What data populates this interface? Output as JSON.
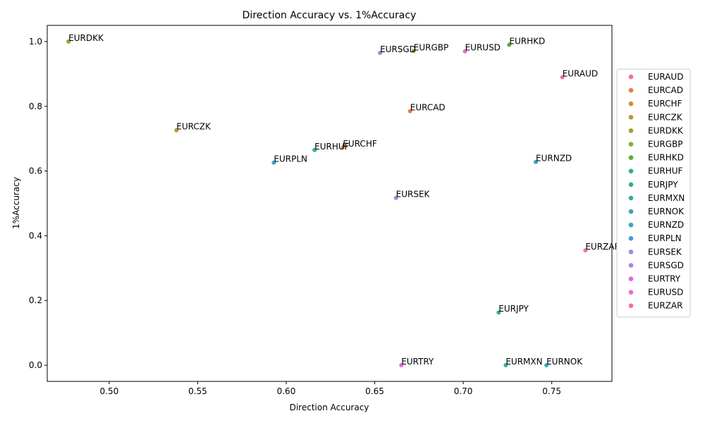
{
  "chart_data": {
    "type": "scatter",
    "title": "Direction Accuracy vs. 1%Accuracy",
    "xlabel": "Direction Accuracy",
    "ylabel": "1%Accuracy",
    "xlim": [
      0.465,
      0.784
    ],
    "ylim": [
      -0.05,
      1.05
    ],
    "xticks": [
      0.5,
      0.55,
      0.6,
      0.65,
      0.7,
      0.75
    ],
    "xtick_labels": [
      "0.50",
      "0.55",
      "0.60",
      "0.65",
      "0.70",
      "0.75"
    ],
    "yticks": [
      0.0,
      0.2,
      0.4,
      0.6,
      0.8,
      1.0
    ],
    "ytick_labels": [
      "0.0",
      "0.2",
      "0.4",
      "0.6",
      "0.8",
      "1.0"
    ],
    "grid": false,
    "legend_position": "right",
    "points": [
      {
        "name": "EURAUD",
        "x": 0.756,
        "y": 0.89,
        "color": "#f77189"
      },
      {
        "name": "EURCAD",
        "x": 0.67,
        "y": 0.785,
        "color": "#f3793b"
      },
      {
        "name": "EURCHF",
        "x": 0.632,
        "y": 0.673,
        "color": "#d58c32"
      },
      {
        "name": "EURCZK",
        "x": 0.538,
        "y": 0.726,
        "color": "#bb9832"
      },
      {
        "name": "EURDKK",
        "x": 0.477,
        "y": 1.0,
        "color": "#a4a031"
      },
      {
        "name": "EURGBP",
        "x": 0.672,
        "y": 0.971,
        "color": "#88a931"
      },
      {
        "name": "EURHKD",
        "x": 0.726,
        "y": 0.99,
        "color": "#50b131"
      },
      {
        "name": "EURHUF",
        "x": 0.616,
        "y": 0.665,
        "color": "#34ae91"
      },
      {
        "name": "EURJPY",
        "x": 0.72,
        "y": 0.163,
        "color": "#35ac96"
      },
      {
        "name": "EURMXN",
        "x": 0.724,
        "y": 0.0,
        "color": "#37aaa5"
      },
      {
        "name": "EURNOK",
        "x": 0.747,
        "y": 0.0,
        "color": "#38a7b3"
      },
      {
        "name": "EURNZD",
        "x": 0.741,
        "y": 0.628,
        "color": "#3ba3bc"
      },
      {
        "name": "EURPLN",
        "x": 0.593,
        "y": 0.626,
        "color": "#3e9fd3"
      },
      {
        "name": "EURSEK",
        "x": 0.662,
        "y": 0.517,
        "color": "#8e8fe5"
      },
      {
        "name": "EURSGD",
        "x": 0.653,
        "y": 0.965,
        "color": "#ae7fe8"
      },
      {
        "name": "EURTRY",
        "x": 0.665,
        "y": 0.0,
        "color": "#e566e5"
      },
      {
        "name": "EURUSD",
        "x": 0.701,
        "y": 0.97,
        "color": "#f069c2"
      },
      {
        "name": "EURZAR",
        "x": 0.769,
        "y": 0.355,
        "color": "#f56fa4"
      }
    ]
  }
}
